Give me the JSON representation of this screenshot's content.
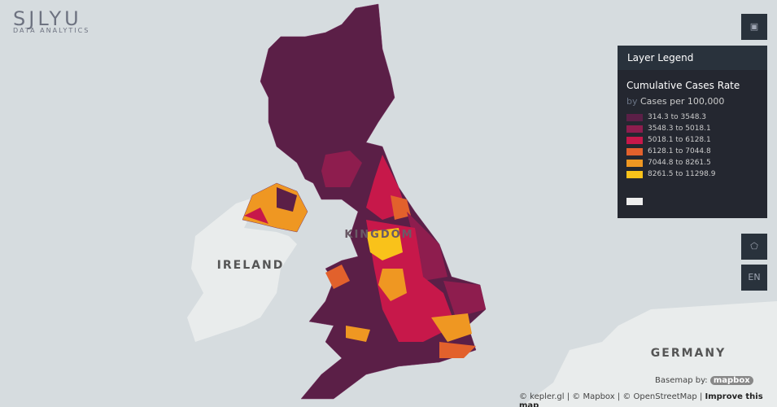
{
  "logo": {
    "name": "SJLYU",
    "tagline": "DATA ANALYTICS"
  },
  "map_labels": {
    "ireland": "IRELAND",
    "germany": "GERMANY",
    "kingdom": "KINGDOM"
  },
  "legend": {
    "header": "Layer Legend",
    "layer": "Cumulative Cases Rate",
    "by": "by",
    "field": "Cases per 100,000",
    "items": [
      {
        "label": "314.3 to 3548.3",
        "color": "#5b1f47"
      },
      {
        "label": "3548.3 to 5018.1",
        "color": "#8e1d4e"
      },
      {
        "label": "5018.1 to 6128.1",
        "color": "#c7184a"
      },
      {
        "label": "6128.1 to 7044.8",
        "color": "#e2612c"
      },
      {
        "label": "7044.8 to 8261.5",
        "color": "#ef9722"
      },
      {
        "label": "8261.5 to 11298.9",
        "color": "#f9c21a"
      }
    ]
  },
  "controls": {
    "language": "EN"
  },
  "attribution": {
    "basemap_by": "Basemap by:",
    "mapbox": "mapbox",
    "kepler": "© kepler.gl",
    "mapbox_copy": "© Mapbox",
    "osm": "© OpenStreetMap",
    "improve": "Improve this map"
  }
}
